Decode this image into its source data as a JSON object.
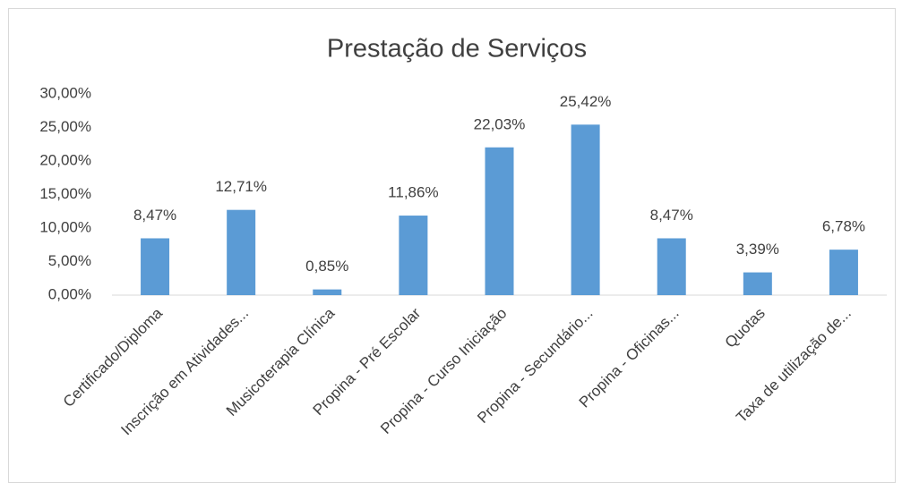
{
  "chart_data": {
    "type": "bar",
    "title": "Prestação de Serviços",
    "categories": [
      "Certificado/Diploma",
      "Inscrição em Atividades...",
      "Musicoterapia Clínica",
      "Propina - Pré Escolar",
      "Propina - Curso Iniciação",
      "Propina - Secundário...",
      "Propina - Oficinas...",
      "Quotas",
      "Taxa de utilização de..."
    ],
    "values": [
      8.47,
      12.71,
      0.85,
      11.86,
      22.03,
      25.42,
      8.47,
      3.39,
      6.78
    ],
    "value_labels": [
      "8,47%",
      "12,71%",
      "0,85%",
      "11,86%",
      "22,03%",
      "25,42%",
      "8,47%",
      "3,39%",
      "6,78%"
    ],
    "color": "#5b9bd5",
    "ylim": [
      0,
      30
    ],
    "yticks": [
      {
        "value": 0,
        "label": "0,00%"
      },
      {
        "value": 5,
        "label": "5,00%"
      },
      {
        "value": 10,
        "label": "10,00%"
      },
      {
        "value": 15,
        "label": "15,00%"
      },
      {
        "value": 20,
        "label": "20,00%"
      },
      {
        "value": 25,
        "label": "25,00%"
      },
      {
        "value": 30,
        "label": "30,00%"
      }
    ],
    "grid": false
  }
}
